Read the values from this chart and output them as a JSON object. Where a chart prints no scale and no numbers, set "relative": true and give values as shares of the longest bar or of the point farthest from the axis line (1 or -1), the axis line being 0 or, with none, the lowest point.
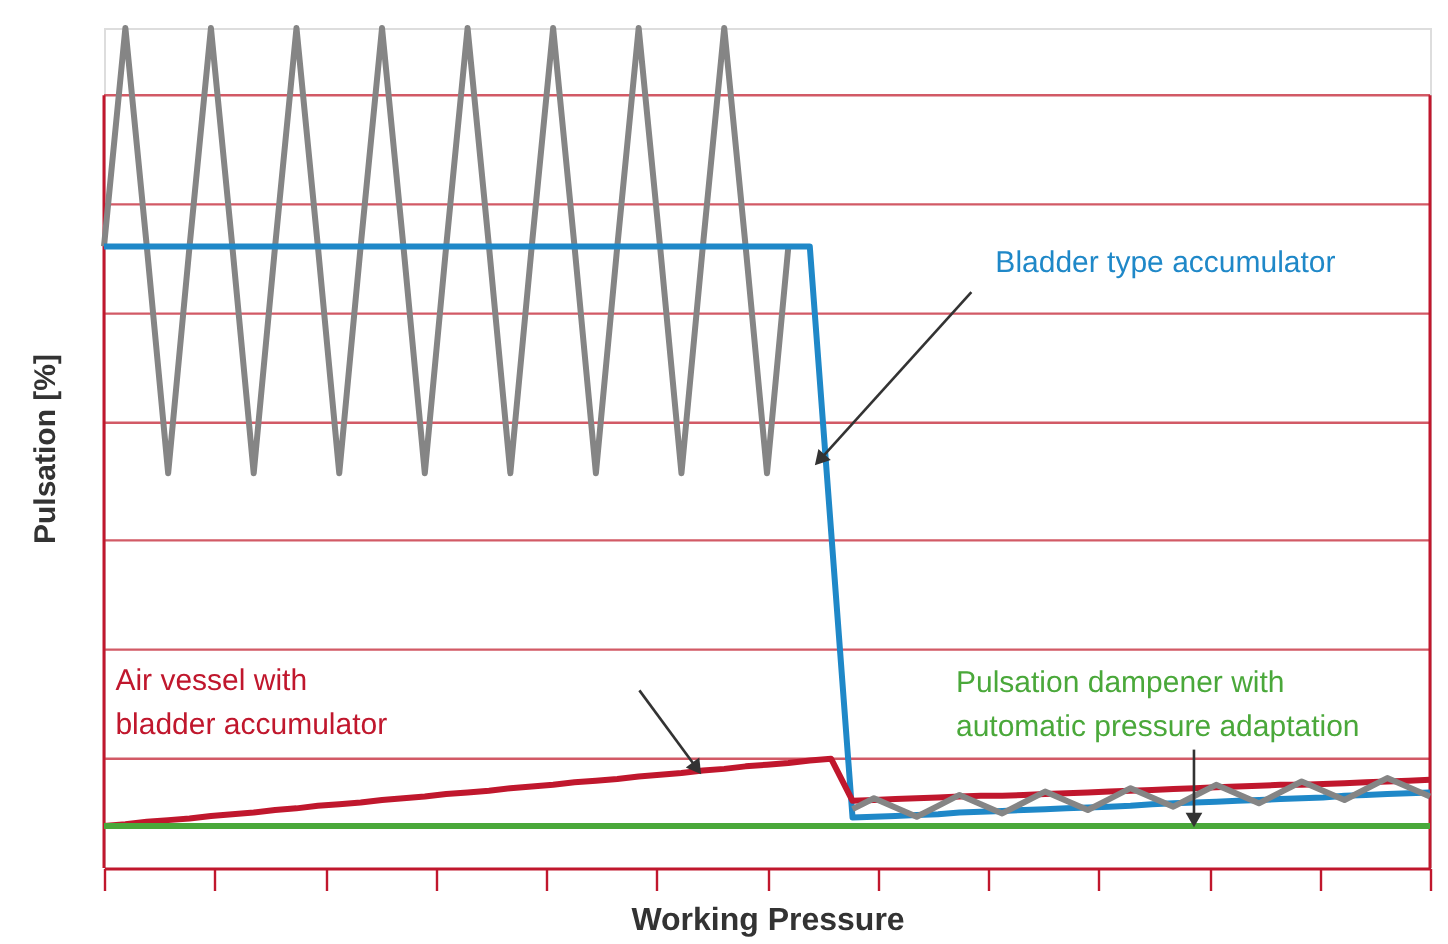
{
  "chart_data": {
    "type": "line",
    "relative": true,
    "xlabel": "Working Pressure",
    "ylabel": "Pulsation [%]",
    "categories": [
      null,
      null,
      null,
      null,
      null,
      null,
      null,
      null,
      null,
      null,
      null,
      null,
      null,
      null,
      null,
      null,
      null,
      null,
      null,
      null,
      null,
      null,
      null,
      null,
      null,
      null,
      null,
      null,
      null,
      null,
      null,
      null,
      null,
      null,
      null,
      null,
      null,
      null,
      null,
      null,
      null,
      null,
      null,
      null,
      null,
      null,
      null,
      null,
      null,
      null,
      null,
      null,
      null,
      null,
      null,
      null,
      null,
      null,
      null,
      null,
      null,
      null,
      null
    ],
    "ref_lines": [
      {
        "axis": "y",
        "value": 0.13,
        "color": "#d25a66"
      },
      {
        "axis": "y",
        "value": 0.26,
        "color": "#d25a66"
      },
      {
        "axis": "y",
        "value": 0.39,
        "color": "#d25a66"
      },
      {
        "axis": "y",
        "value": 0.53,
        "color": "#d25a66"
      },
      {
        "axis": "y",
        "value": 0.66,
        "color": "#d25a66"
      },
      {
        "axis": "y",
        "value": 0.79,
        "color": "#d25a66"
      },
      {
        "axis": "y",
        "value": 0.92,
        "color": "#d25a66"
      }
    ],
    "marker": "none",
    "line_style": "solid",
    "series": [
      {
        "color": "#858585",
        "values": [
          0.74,
          1.0,
          0.74,
          0.47,
          0.74,
          1.0,
          0.74,
          0.47,
          0.74,
          1.0,
          0.74,
          0.47,
          0.74,
          1.0,
          0.74,
          0.47,
          0.74,
          1.0,
          0.74,
          0.47,
          0.74,
          1.0,
          0.74,
          0.47,
          0.74,
          1.0,
          0.74,
          0.47,
          0.74,
          1.0,
          0.74,
          0.47,
          0.74,
          null,
          null,
          null,
          null,
          null,
          null,
          null,
          null,
          null,
          null,
          null,
          null,
          null,
          null,
          null,
          null,
          null,
          null,
          null,
          null,
          null,
          null,
          null,
          null,
          null,
          null,
          null,
          null,
          null,
          null
        ]
      },
      {
        "color": "#1f88c8",
        "values": [
          0.74,
          0.74,
          0.74,
          0.74,
          0.74,
          0.74,
          0.74,
          0.74,
          0.74,
          0.74,
          0.74,
          0.74,
          0.74,
          0.74,
          0.74,
          0.74,
          0.74,
          0.74,
          0.74,
          0.74,
          0.74,
          0.74,
          0.74,
          0.74,
          0.74,
          0.74,
          0.74,
          0.74,
          0.74,
          0.74,
          0.74,
          0.74,
          0.74,
          0.74,
          0.4,
          0.06,
          0.061,
          0.062,
          0.063,
          0.064,
          0.066,
          0.067,
          0.068,
          0.069,
          0.07,
          0.071,
          0.072,
          0.073,
          0.074,
          0.076,
          0.077,
          0.078,
          0.079,
          0.08,
          0.081,
          0.082,
          0.083,
          0.084,
          0.086,
          0.087,
          0.088,
          0.089,
          0.09
        ]
      },
      {
        "color": "#c0172d",
        "values": [
          0.05,
          0.052,
          0.055,
          0.057,
          0.059,
          0.062,
          0.064,
          0.066,
          0.069,
          0.071,
          0.074,
          0.076,
          0.078,
          0.081,
          0.083,
          0.085,
          0.088,
          0.09,
          0.092,
          0.095,
          0.097,
          0.099,
          0.102,
          0.104,
          0.106,
          0.109,
          0.111,
          0.113,
          0.116,
          0.118,
          0.121,
          0.123,
          0.125,
          0.128,
          0.13,
          0.08,
          0.081,
          0.082,
          0.083,
          0.084,
          0.085,
          0.086,
          0.086,
          0.087,
          0.088,
          0.089,
          0.09,
          0.091,
          0.092,
          0.093,
          0.094,
          0.095,
          0.096,
          0.097,
          0.098,
          0.099,
          0.099,
          0.1,
          0.101,
          0.102,
          0.103,
          0.104,
          0.105
        ]
      },
      {
        "color": "#4aa83a",
        "values": [
          0.05,
          0.05,
          0.05,
          0.05,
          0.05,
          0.05,
          0.05,
          0.05,
          0.05,
          0.05,
          0.05,
          0.05,
          0.05,
          0.05,
          0.05,
          0.05,
          0.05,
          0.05,
          0.05,
          0.05,
          0.05,
          0.05,
          0.05,
          0.05,
          0.05,
          0.05,
          0.05,
          0.05,
          0.05,
          0.05,
          0.05,
          0.05,
          0.05,
          0.05,
          0.05,
          0.05,
          0.05,
          0.05,
          0.05,
          0.05,
          0.05,
          0.05,
          0.05,
          0.05,
          0.05,
          0.05,
          0.05,
          0.05,
          0.05,
          0.05,
          0.05,
          0.05,
          0.05,
          0.05,
          0.05,
          0.05,
          0.05,
          0.05,
          0.05,
          0.05,
          0.05,
          0.05,
          0.05
        ]
      },
      {
        "color": "#858585",
        "values": [
          null,
          null,
          null,
          null,
          null,
          null,
          null,
          null,
          null,
          null,
          null,
          null,
          null,
          null,
          null,
          null,
          null,
          null,
          null,
          null,
          null,
          null,
          null,
          null,
          null,
          null,
          null,
          null,
          null,
          null,
          null,
          null,
          null,
          null,
          null,
          0.07,
          0.083,
          0.072,
          0.061,
          0.074,
          0.087,
          0.076,
          0.065,
          0.078,
          0.091,
          0.08,
          0.069,
          0.082,
          0.095,
          0.084,
          0.073,
          0.086,
          0.099,
          0.088,
          0.077,
          0.09,
          0.103,
          0.092,
          0.081,
          0.094,
          0.107,
          0.096,
          0.085
        ]
      }
    ],
    "annotations": [
      "Bladder type accumulator",
      "Air vessel with\nbladder accumulator",
      {
        "text": "Pulsation dampener with\nautomatic pressure adaptation",
        "y": 0.06
      }
    ]
  }
}
